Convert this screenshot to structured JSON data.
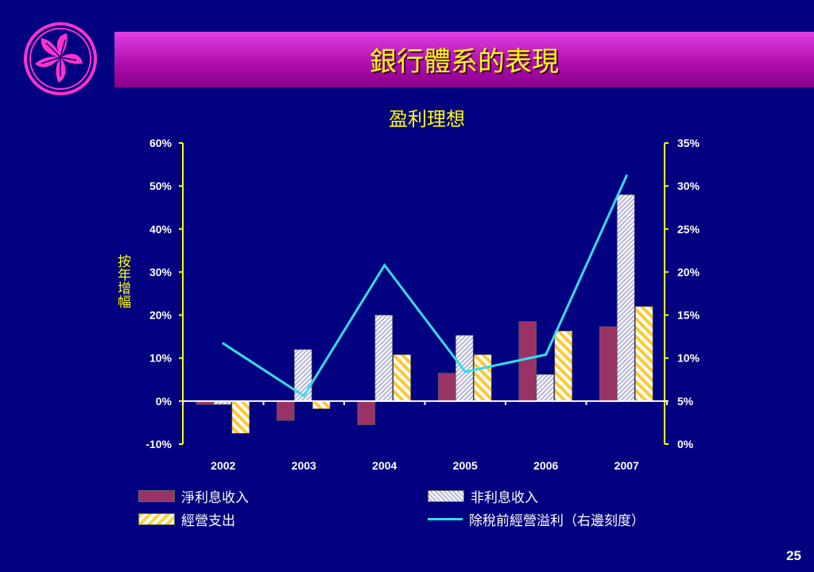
{
  "header": {
    "title": "銀行體系的表現"
  },
  "page_number": "25",
  "chart_data": {
    "type": "bar",
    "title": "盈利理想",
    "ylabel": "按年增幅",
    "categories": [
      "2002",
      "2003",
      "2004",
      "2005",
      "2006",
      "2007"
    ],
    "ylim": [
      -10,
      60
    ],
    "y_ticks": [
      "60%",
      "50%",
      "40%",
      "30%",
      "20%",
      "10%",
      "0%",
      "-10%"
    ],
    "y2lim": [
      0,
      35
    ],
    "y2_ticks": [
      "35%",
      "30%",
      "25%",
      "20%",
      "15%",
      "10%",
      "5%",
      "0%"
    ],
    "series": [
      {
        "name": "淨利息收入",
        "kind": "bar",
        "color": "#993366",
        "values": [
          -0.8,
          -4.5,
          -5.5,
          6.5,
          18.5,
          17.3
        ]
      },
      {
        "name": "非利息收入",
        "kind": "bar",
        "color": "#d0d0e8",
        "values": [
          -0.8,
          12.0,
          20.0,
          15.3,
          6.2,
          48.0
        ]
      },
      {
        "name": "經營支出",
        "kind": "bar",
        "color": "#ffd040",
        "values": [
          -7.5,
          -1.8,
          10.8,
          10.8,
          16.3,
          22.0
        ]
      },
      {
        "name": "除稅前經營溢利（右邊刻度）",
        "kind": "line",
        "axis": "right",
        "color": "#33ddee",
        "values": [
          11.7,
          5.6,
          20.8,
          8.4,
          10.4,
          31.2
        ]
      }
    ],
    "legend": [
      "淨利息收入",
      "非利息收入",
      "經營支出",
      "除稅前經營溢利（右邊刻度）"
    ],
    "grid": false,
    "legend_position": "bottom"
  }
}
